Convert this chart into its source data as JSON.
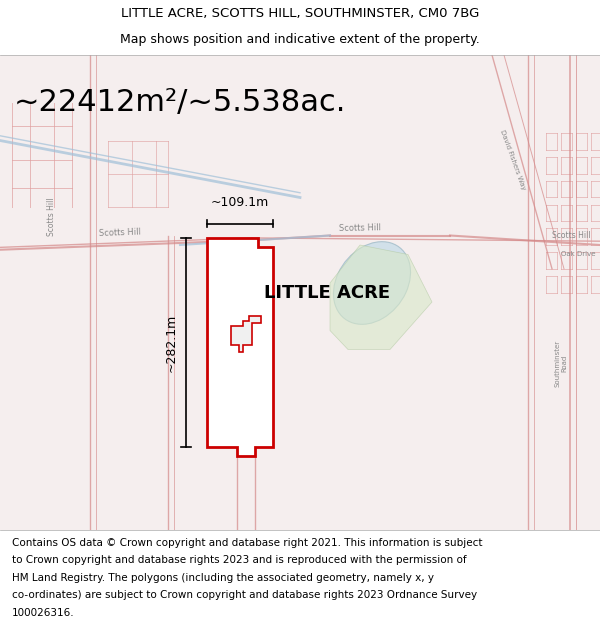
{
  "title_line1": "LITTLE ACRE, SCOTTS HILL, SOUTHMINSTER, CM0 7BG",
  "title_line2": "Map shows position and indicative extent of the property.",
  "area_text": "~22412m²/~5.538ac.",
  "label_text": "LITTLE ACRE",
  "dim_vertical": "~282.1m",
  "dim_horizontal": "~109.1m",
  "footer_lines": [
    "Contains OS data © Crown copyright and database right 2021. This information is subject",
    "to Crown copyright and database rights 2023 and is reproduced with the permission of",
    "HM Land Registry. The polygons (including the associated geometry, namely x, y",
    "co-ordinates) are subject to Crown copyright and database rights 2023 Ordnance Survey",
    "100026316."
  ],
  "title_fontsize": 9.5,
  "subtitle_fontsize": 9.0,
  "area_fontsize": 22,
  "label_fontsize": 13,
  "dim_fontsize": 9,
  "footer_fontsize": 7.5
}
